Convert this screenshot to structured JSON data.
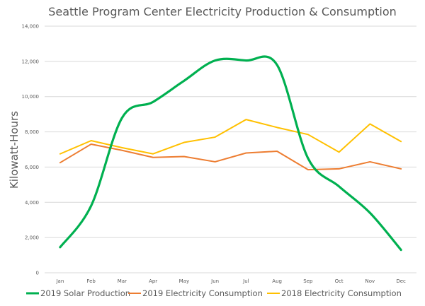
{
  "chart_data": {
    "type": "line",
    "title": "Seattle Program Center Electricity Production & Consumption",
    "xlabel": "",
    "ylabel": "Kilowatt-Hours",
    "ylim": [
      0,
      14000
    ],
    "yticks": [
      0,
      2000,
      4000,
      6000,
      8000,
      10000,
      12000,
      14000
    ],
    "ytick_labels": [
      "0",
      "2,000",
      "4,000",
      "6,000",
      "8,000",
      "10,000",
      "12,000",
      "14,000"
    ],
    "grid": true,
    "legend_position": "bottom",
    "categories": [
      "Jan",
      "Feb",
      "Mar",
      "Apr",
      "May",
      "Jun",
      "Jul",
      "Aug",
      "Sep",
      "Oct",
      "Nov",
      "Dec"
    ],
    "series": [
      {
        "name": "2019 Solar Production",
        "color": "#00b050",
        "smooth": true,
        "values": [
          1450,
          3800,
          8800,
          9700,
          10900,
          12050,
          12050,
          11800,
          6500,
          4900,
          3400,
          1300
        ]
      },
      {
        "name": "2019 Electricity Consumption",
        "color": "#ed7d31",
        "smooth": false,
        "values": [
          6250,
          7300,
          6950,
          6550,
          6600,
          6300,
          6800,
          6900,
          5850,
          5900,
          6300,
          5900
        ]
      },
      {
        "name": "2018 Electricity Consumption",
        "color": "#ffc000",
        "smooth": false,
        "values": [
          6750,
          7500,
          7100,
          6750,
          7400,
          7700,
          8700,
          8250,
          7850,
          6850,
          8450,
          7450
        ]
      }
    ]
  }
}
